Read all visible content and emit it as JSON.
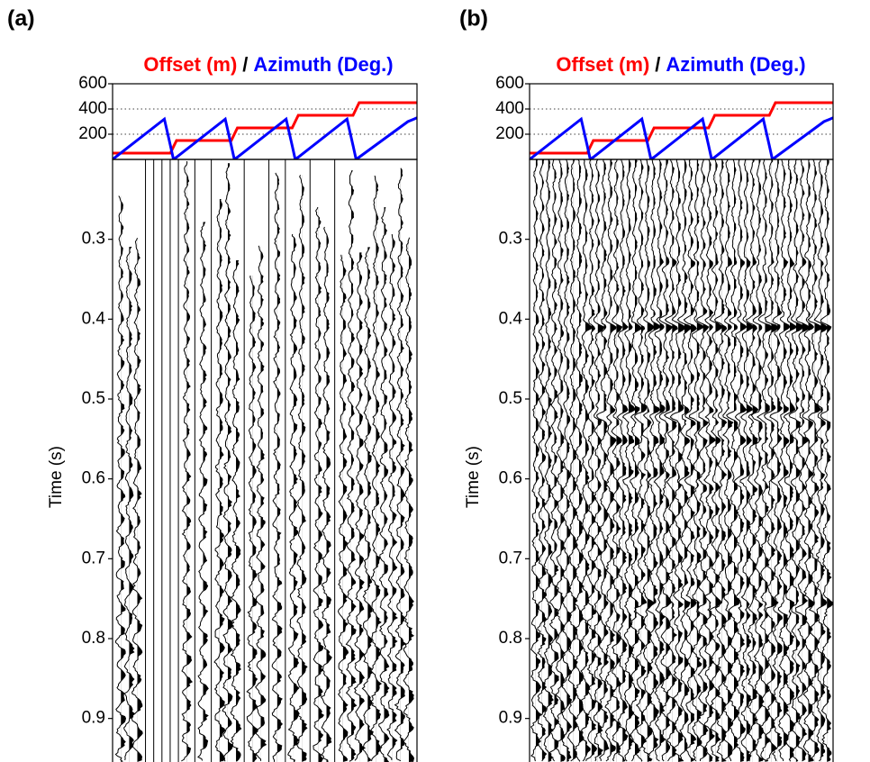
{
  "chart_data": [
    {
      "type": "line",
      "panel_label": "(a)",
      "title_separator": "/",
      "x": [
        0,
        17,
        19,
        20,
        21,
        37,
        39,
        40,
        41,
        57,
        59,
        60,
        61,
        77,
        79,
        80,
        81,
        97,
        99,
        100
      ],
      "xlim": [
        0,
        100
      ],
      "series": [
        {
          "name": "Offset (m)",
          "color": "#ff0000",
          "values": [
            50,
            50,
            50,
            100,
            150,
            150,
            150,
            200,
            250,
            250,
            250,
            300,
            350,
            350,
            350,
            400,
            450,
            450,
            450,
            450
          ]
        },
        {
          "name": "Azimuth (Deg.)",
          "color": "#0000ff",
          "values": [
            0,
            320,
            110,
            0,
            18,
            320,
            110,
            0,
            18,
            320,
            110,
            0,
            18,
            320,
            110,
            0,
            18,
            300,
            320,
            330
          ]
        }
      ],
      "ylim": [
        0,
        600
      ],
      "yticks": [
        200,
        400,
        600
      ],
      "grid": true,
      "time_axis": {
        "type": "wiggle",
        "ylabel": "Time (s)",
        "ylim": [
          0.2,
          0.95
        ],
        "yticks": [
          0.3,
          0.4,
          0.5,
          0.6,
          0.7,
          0.8,
          0.9
        ]
      }
    },
    {
      "type": "line",
      "panel_label": "(b)",
      "title_separator": "/",
      "x": [
        0,
        17,
        19,
        20,
        21,
        37,
        39,
        40,
        41,
        57,
        59,
        60,
        61,
        77,
        79,
        80,
        81,
        97,
        99,
        100
      ],
      "xlim": [
        0,
        100
      ],
      "series": [
        {
          "name": "Offset (m)",
          "color": "#ff0000",
          "values": [
            50,
            50,
            50,
            100,
            150,
            150,
            150,
            200,
            250,
            250,
            250,
            300,
            350,
            350,
            350,
            400,
            450,
            450,
            450,
            450
          ]
        },
        {
          "name": "Azimuth (Deg.)",
          "color": "#0000ff",
          "values": [
            0,
            320,
            110,
            0,
            18,
            320,
            110,
            0,
            18,
            320,
            110,
            0,
            18,
            320,
            110,
            0,
            18,
            300,
            320,
            330
          ]
        }
      ],
      "ylim": [
        0,
        600
      ],
      "yticks": [
        200,
        400,
        600
      ],
      "grid": true,
      "time_axis": {
        "type": "wiggle",
        "ylabel": "Time (s)",
        "ylim": [
          0.2,
          0.95
        ],
        "yticks": [
          0.3,
          0.4,
          0.5,
          0.6,
          0.7,
          0.8,
          0.9
        ]
      }
    }
  ]
}
